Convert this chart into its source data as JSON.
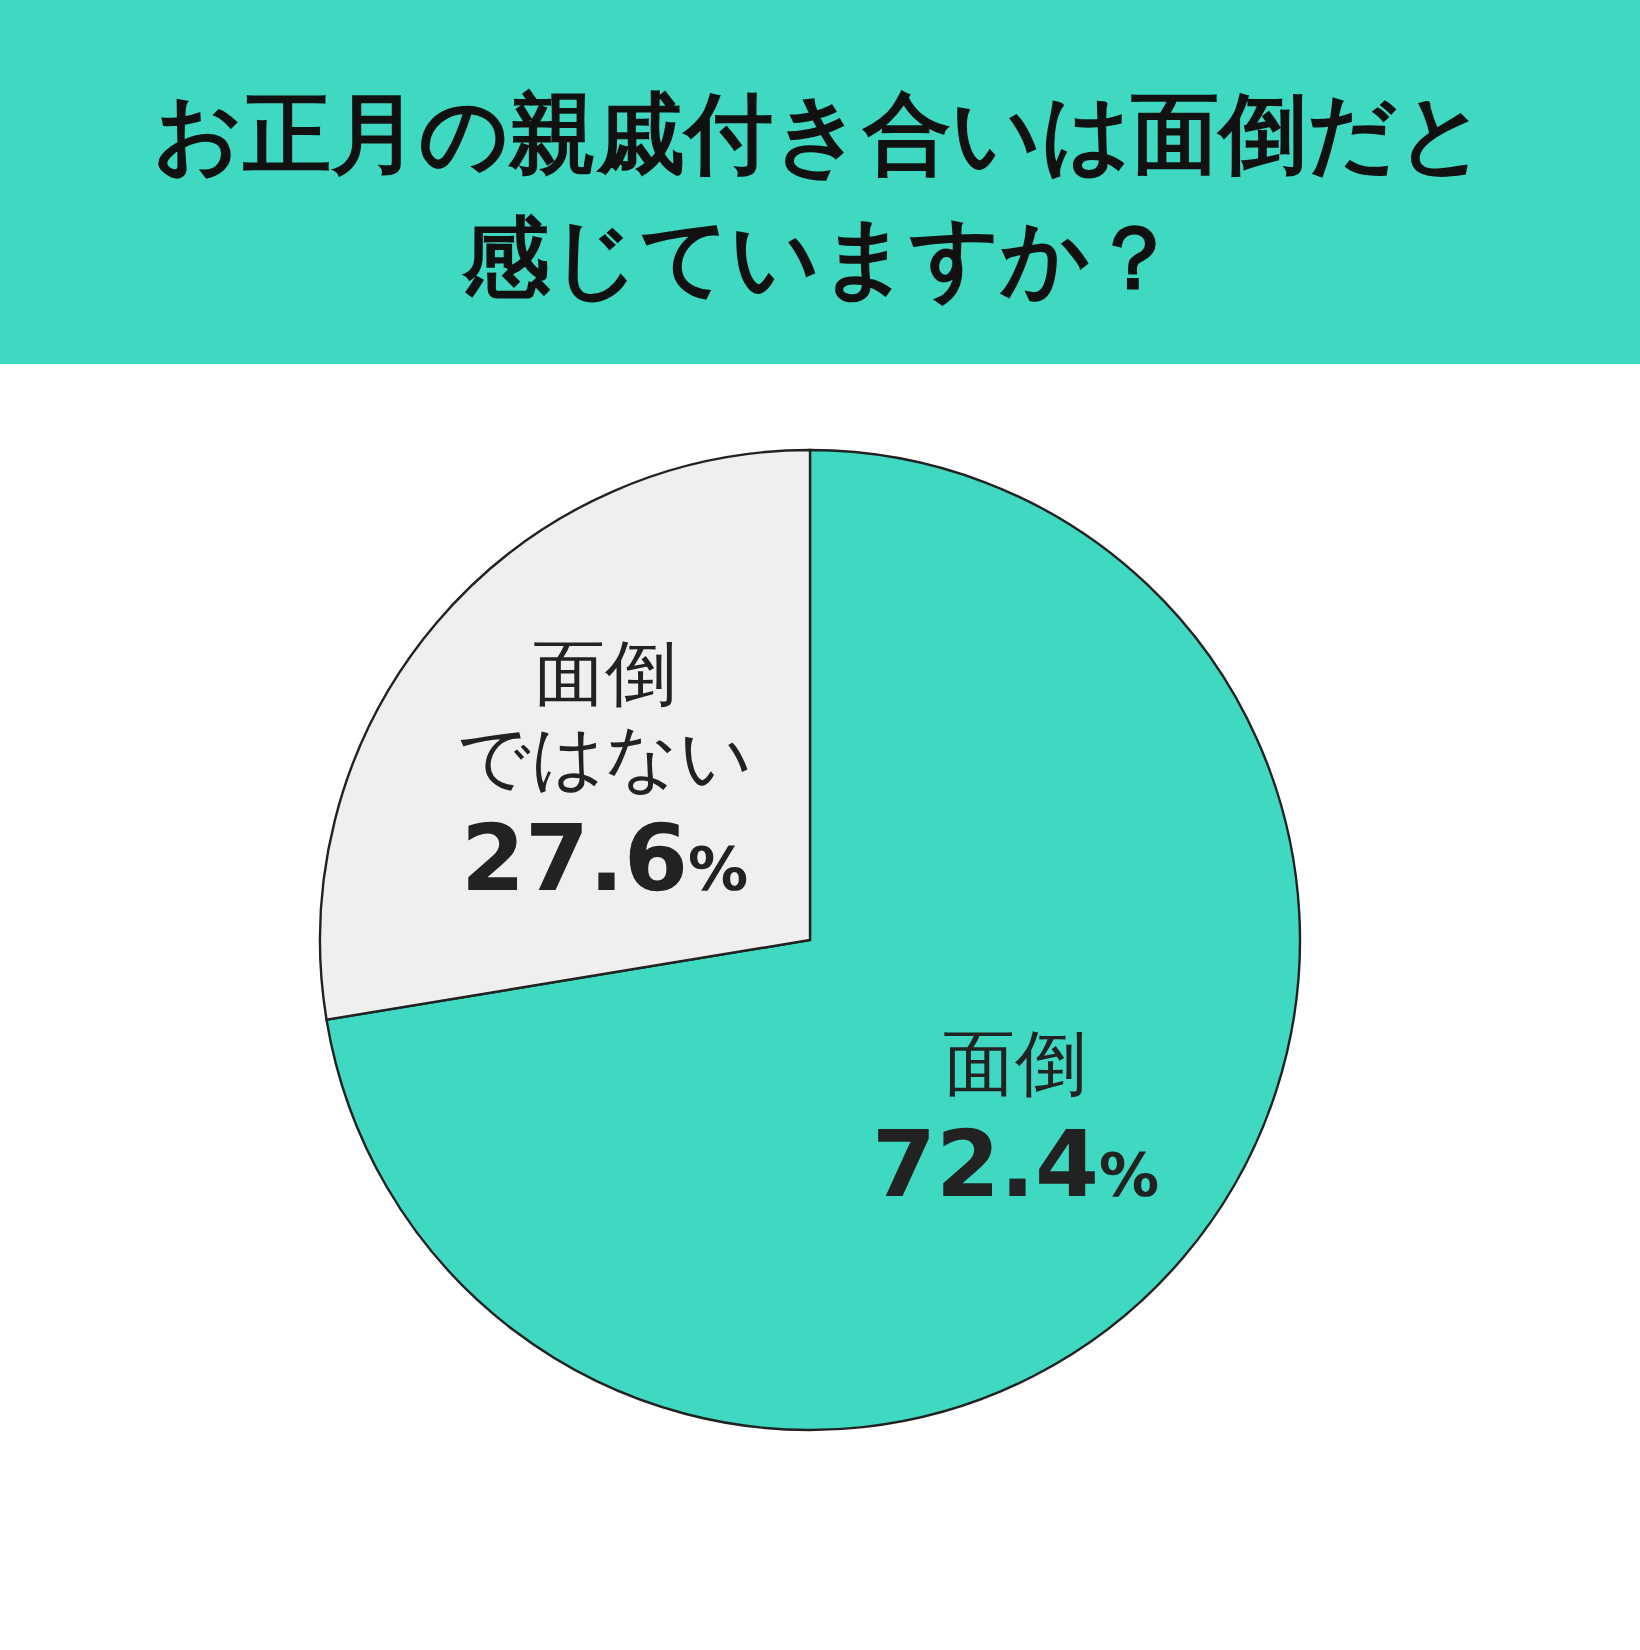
{
  "chart_data": {
    "type": "pie",
    "title": "お正月の親戚付き合いは面倒だと感じていますか？",
    "categories": [
      "面倒",
      "面倒ではない"
    ],
    "values": [
      72.4,
      27.6
    ],
    "value_labels": [
      "72.4%",
      "27.6%"
    ],
    "colors": [
      "#3fd9c1",
      "#efefef"
    ]
  }
}
